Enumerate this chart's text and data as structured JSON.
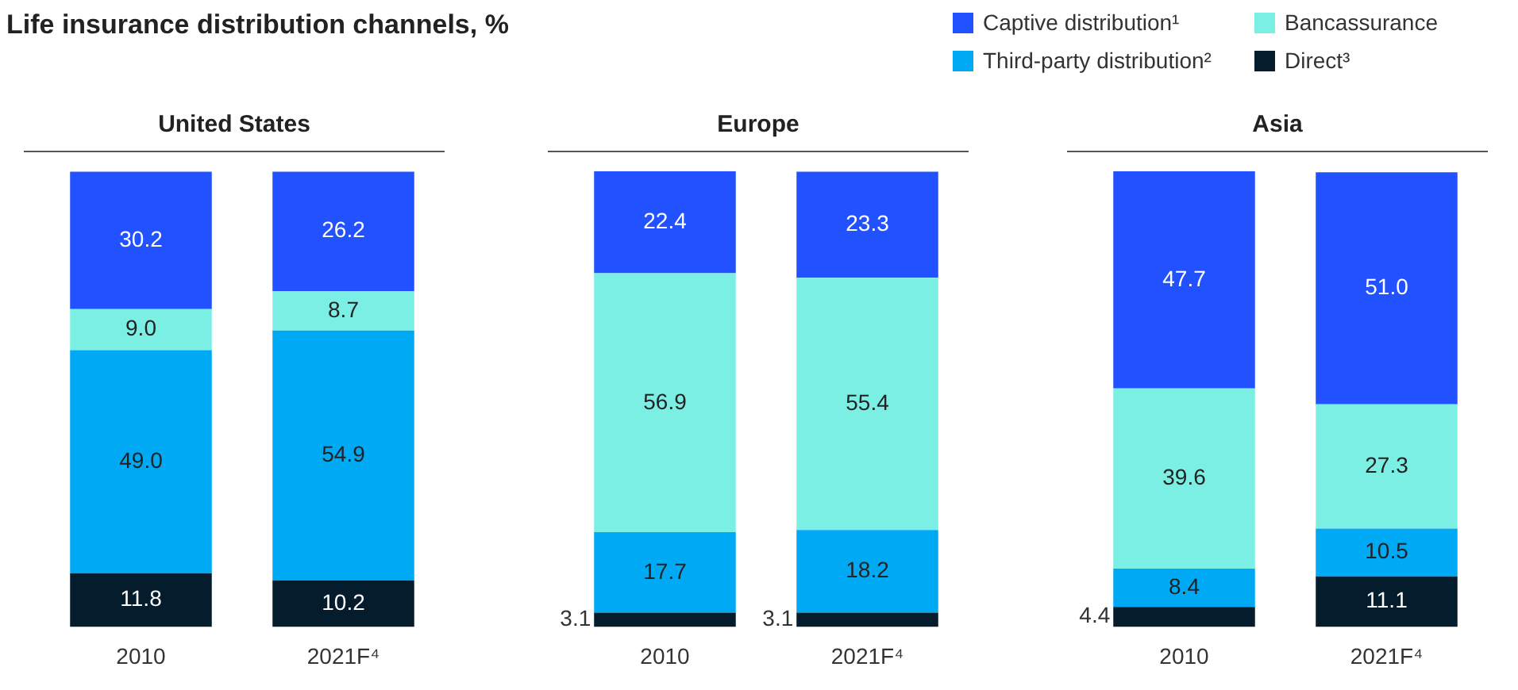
{
  "chart_data": [
    {
      "type": "bar",
      "title": "United States",
      "annotations": [
        "Life insurance distribution channels, %"
      ],
      "categories": [
        "2010",
        "2021F⁴"
      ],
      "stacked": true,
      "legend": "top right",
      "tick_labels": "x",
      "ylim": [
        0,
        100.1
      ],
      "series": [
        {
          "name": "Direct³",
          "color": "#051c2c",
          "values": [
            11.8,
            10.2
          ],
          "value_labels": [
            "11.8",
            "10.2"
          ]
        },
        {
          "name": "Third-party distribution²",
          "color": "#00a9f4",
          "values": [
            49.0,
            54.9
          ],
          "value_labels": [
            "49.0",
            "54.9"
          ]
        },
        {
          "name": "Bancassurance",
          "color": "#7cefe4",
          "values": [
            9.0,
            8.7
          ],
          "value_labels": [
            "9.0",
            "8.7"
          ]
        },
        {
          "name": "Captive distribution¹",
          "color": "#2251ff",
          "values": [
            30.2,
            26.2
          ],
          "value_labels": [
            "30.2",
            "26.2"
          ]
        }
      ]
    },
    {
      "type": "bar",
      "title": "Europe",
      "categories": [
        "2010",
        "2021F⁴"
      ],
      "stacked": true,
      "tick_labels": "x",
      "ylim": [
        0,
        100.1
      ],
      "series": [
        {
          "color": "#051c2c",
          "values": [
            3.1,
            3.1
          ],
          "value_labels": [
            "3.1",
            "3.1"
          ]
        },
        {
          "color": "#00a9f4",
          "values": [
            17.7,
            18.2
          ],
          "value_labels": [
            "17.7",
            "18.2"
          ]
        },
        {
          "color": "#7cefe4",
          "values": [
            56.9,
            55.4
          ],
          "value_labels": [
            "56.9",
            "55.4"
          ]
        },
        {
          "color": "#2251ff",
          "values": [
            22.4,
            23.3
          ],
          "value_labels": [
            "22.4",
            "23.3"
          ]
        }
      ]
    },
    {
      "type": "bar",
      "title": "Asia",
      "categories": [
        "2010",
        "2021F⁴"
      ],
      "stacked": true,
      "tick_labels": "x",
      "ylim": [
        0,
        100.1
      ],
      "series": [
        {
          "color": "#051c2c",
          "values": [
            4.4,
            11.1
          ],
          "value_labels": [
            "4.4",
            "11.1"
          ]
        },
        {
          "color": "#00a9f4",
          "values": [
            8.4,
            10.5
          ],
          "value_labels": [
            "8.4",
            "10.5"
          ]
        },
        {
          "color": "#7cefe4",
          "values": [
            39.6,
            27.3
          ],
          "value_labels": [
            "39.6",
            "27.3"
          ]
        },
        {
          "color": "#2251ff",
          "values": [
            47.7,
            51.0
          ],
          "value_labels": [
            "47.7",
            "51.0"
          ]
        }
      ]
    }
  ]
}
